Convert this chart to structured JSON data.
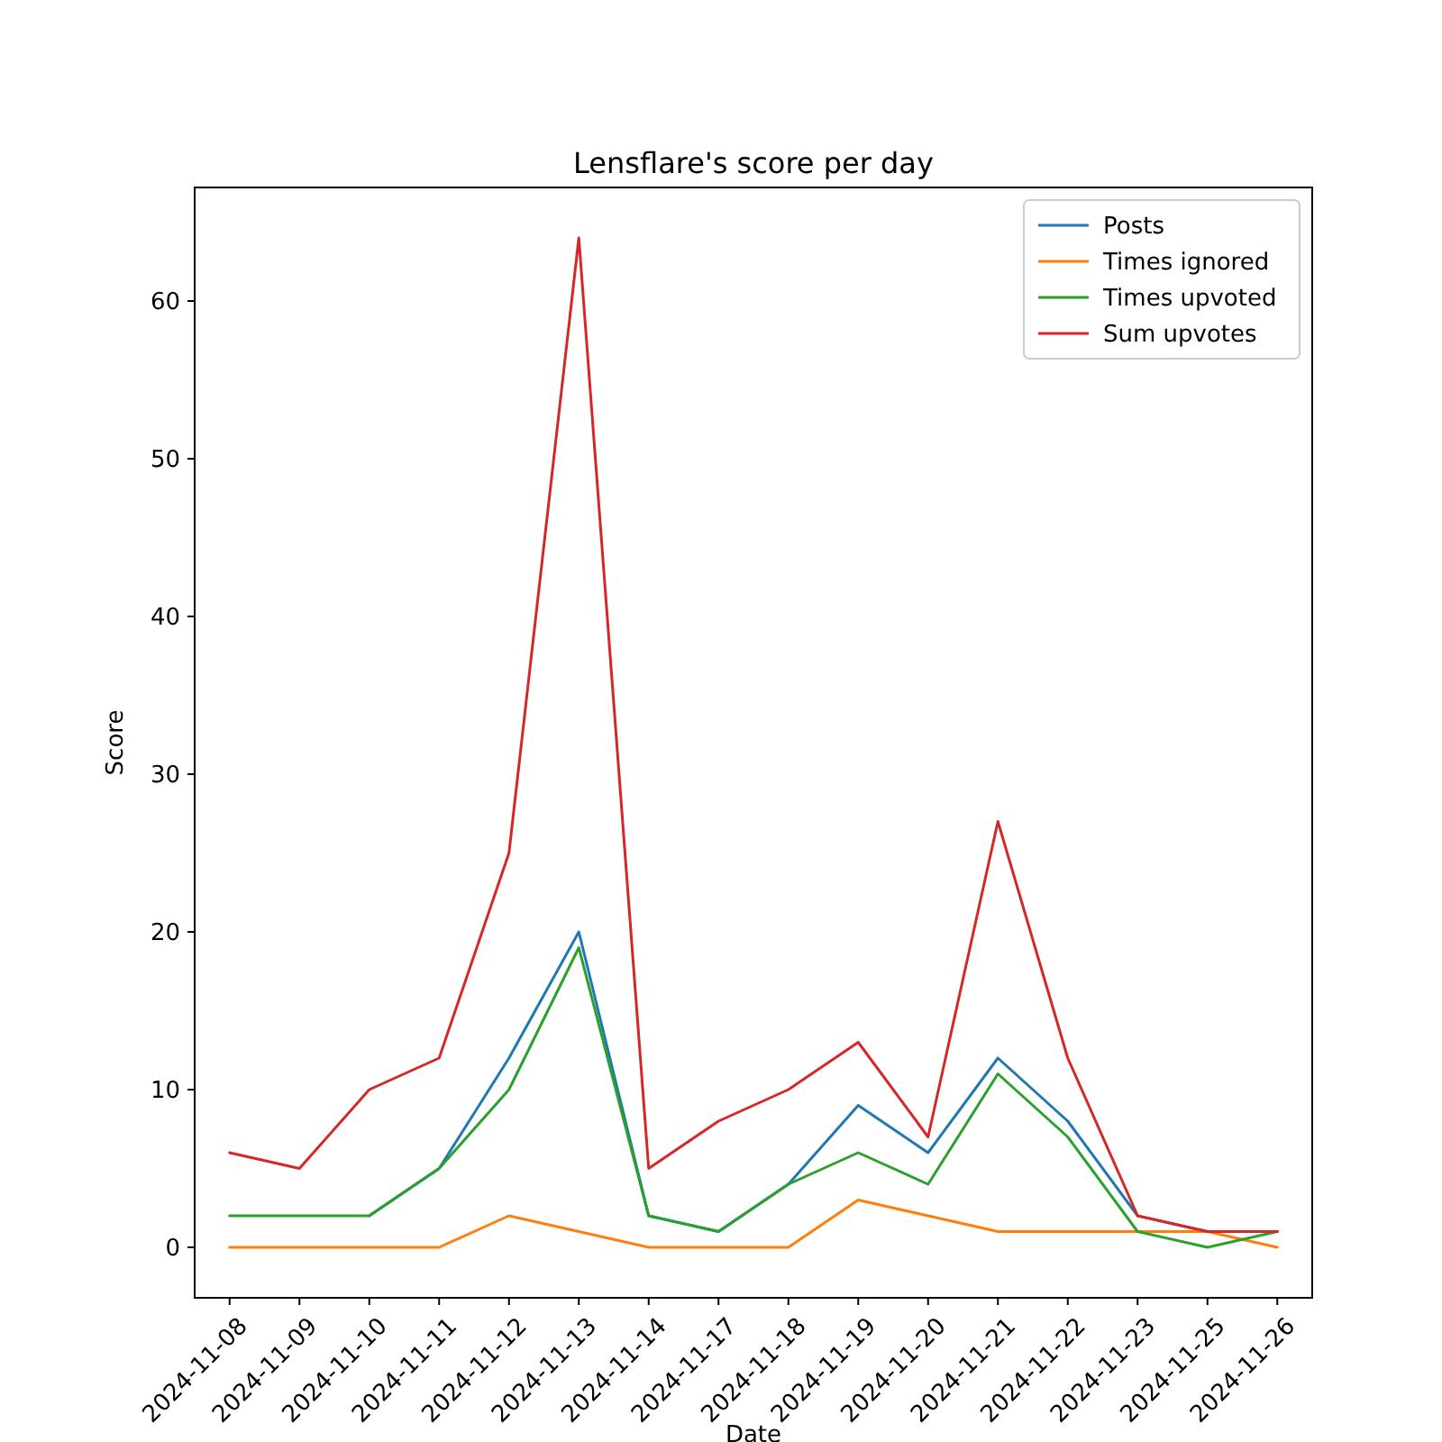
{
  "chart_data": {
    "type": "line",
    "title": "Lensflare's score per day",
    "xlabel": "Date",
    "ylabel": "Score",
    "categories": [
      "2024-11-08",
      "2024-11-09",
      "2024-11-10",
      "2024-11-11",
      "2024-11-12",
      "2024-11-13",
      "2024-11-14",
      "2024-11-17",
      "2024-11-18",
      "2024-11-19",
      "2024-11-20",
      "2024-11-21",
      "2024-11-22",
      "2024-11-23",
      "2024-11-25",
      "2024-11-26"
    ],
    "series": [
      {
        "name": "Posts",
        "color": "#1f77b4",
        "values": [
          null,
          null,
          2,
          5,
          12,
          20,
          2,
          1,
          4,
          9,
          6,
          12,
          8,
          2,
          1,
          1
        ]
      },
      {
        "name": "Times ignored",
        "color": "#ff7f0e",
        "values": [
          0,
          0,
          0,
          0,
          2,
          1,
          0,
          0,
          0,
          3,
          2,
          1,
          1,
          1,
          1,
          0
        ]
      },
      {
        "name": "Times upvoted",
        "color": "#2ca02c",
        "values": [
          2,
          2,
          2,
          5,
          10,
          19,
          2,
          1,
          4,
          6,
          4,
          11,
          7,
          1,
          0,
          1
        ]
      },
      {
        "name": "Sum upvotes",
        "color": "#d62728",
        "values": [
          6,
          5,
          10,
          12,
          25,
          64,
          5,
          8,
          10,
          13,
          7,
          27,
          12,
          2,
          1,
          1
        ]
      }
    ],
    "ylim": [
      -3.2,
      67.2
    ],
    "yticks": [
      0,
      10,
      20,
      30,
      40,
      50,
      60
    ],
    "grid": false,
    "legend": "top right",
    "marker": "none",
    "line_style": "solid"
  }
}
